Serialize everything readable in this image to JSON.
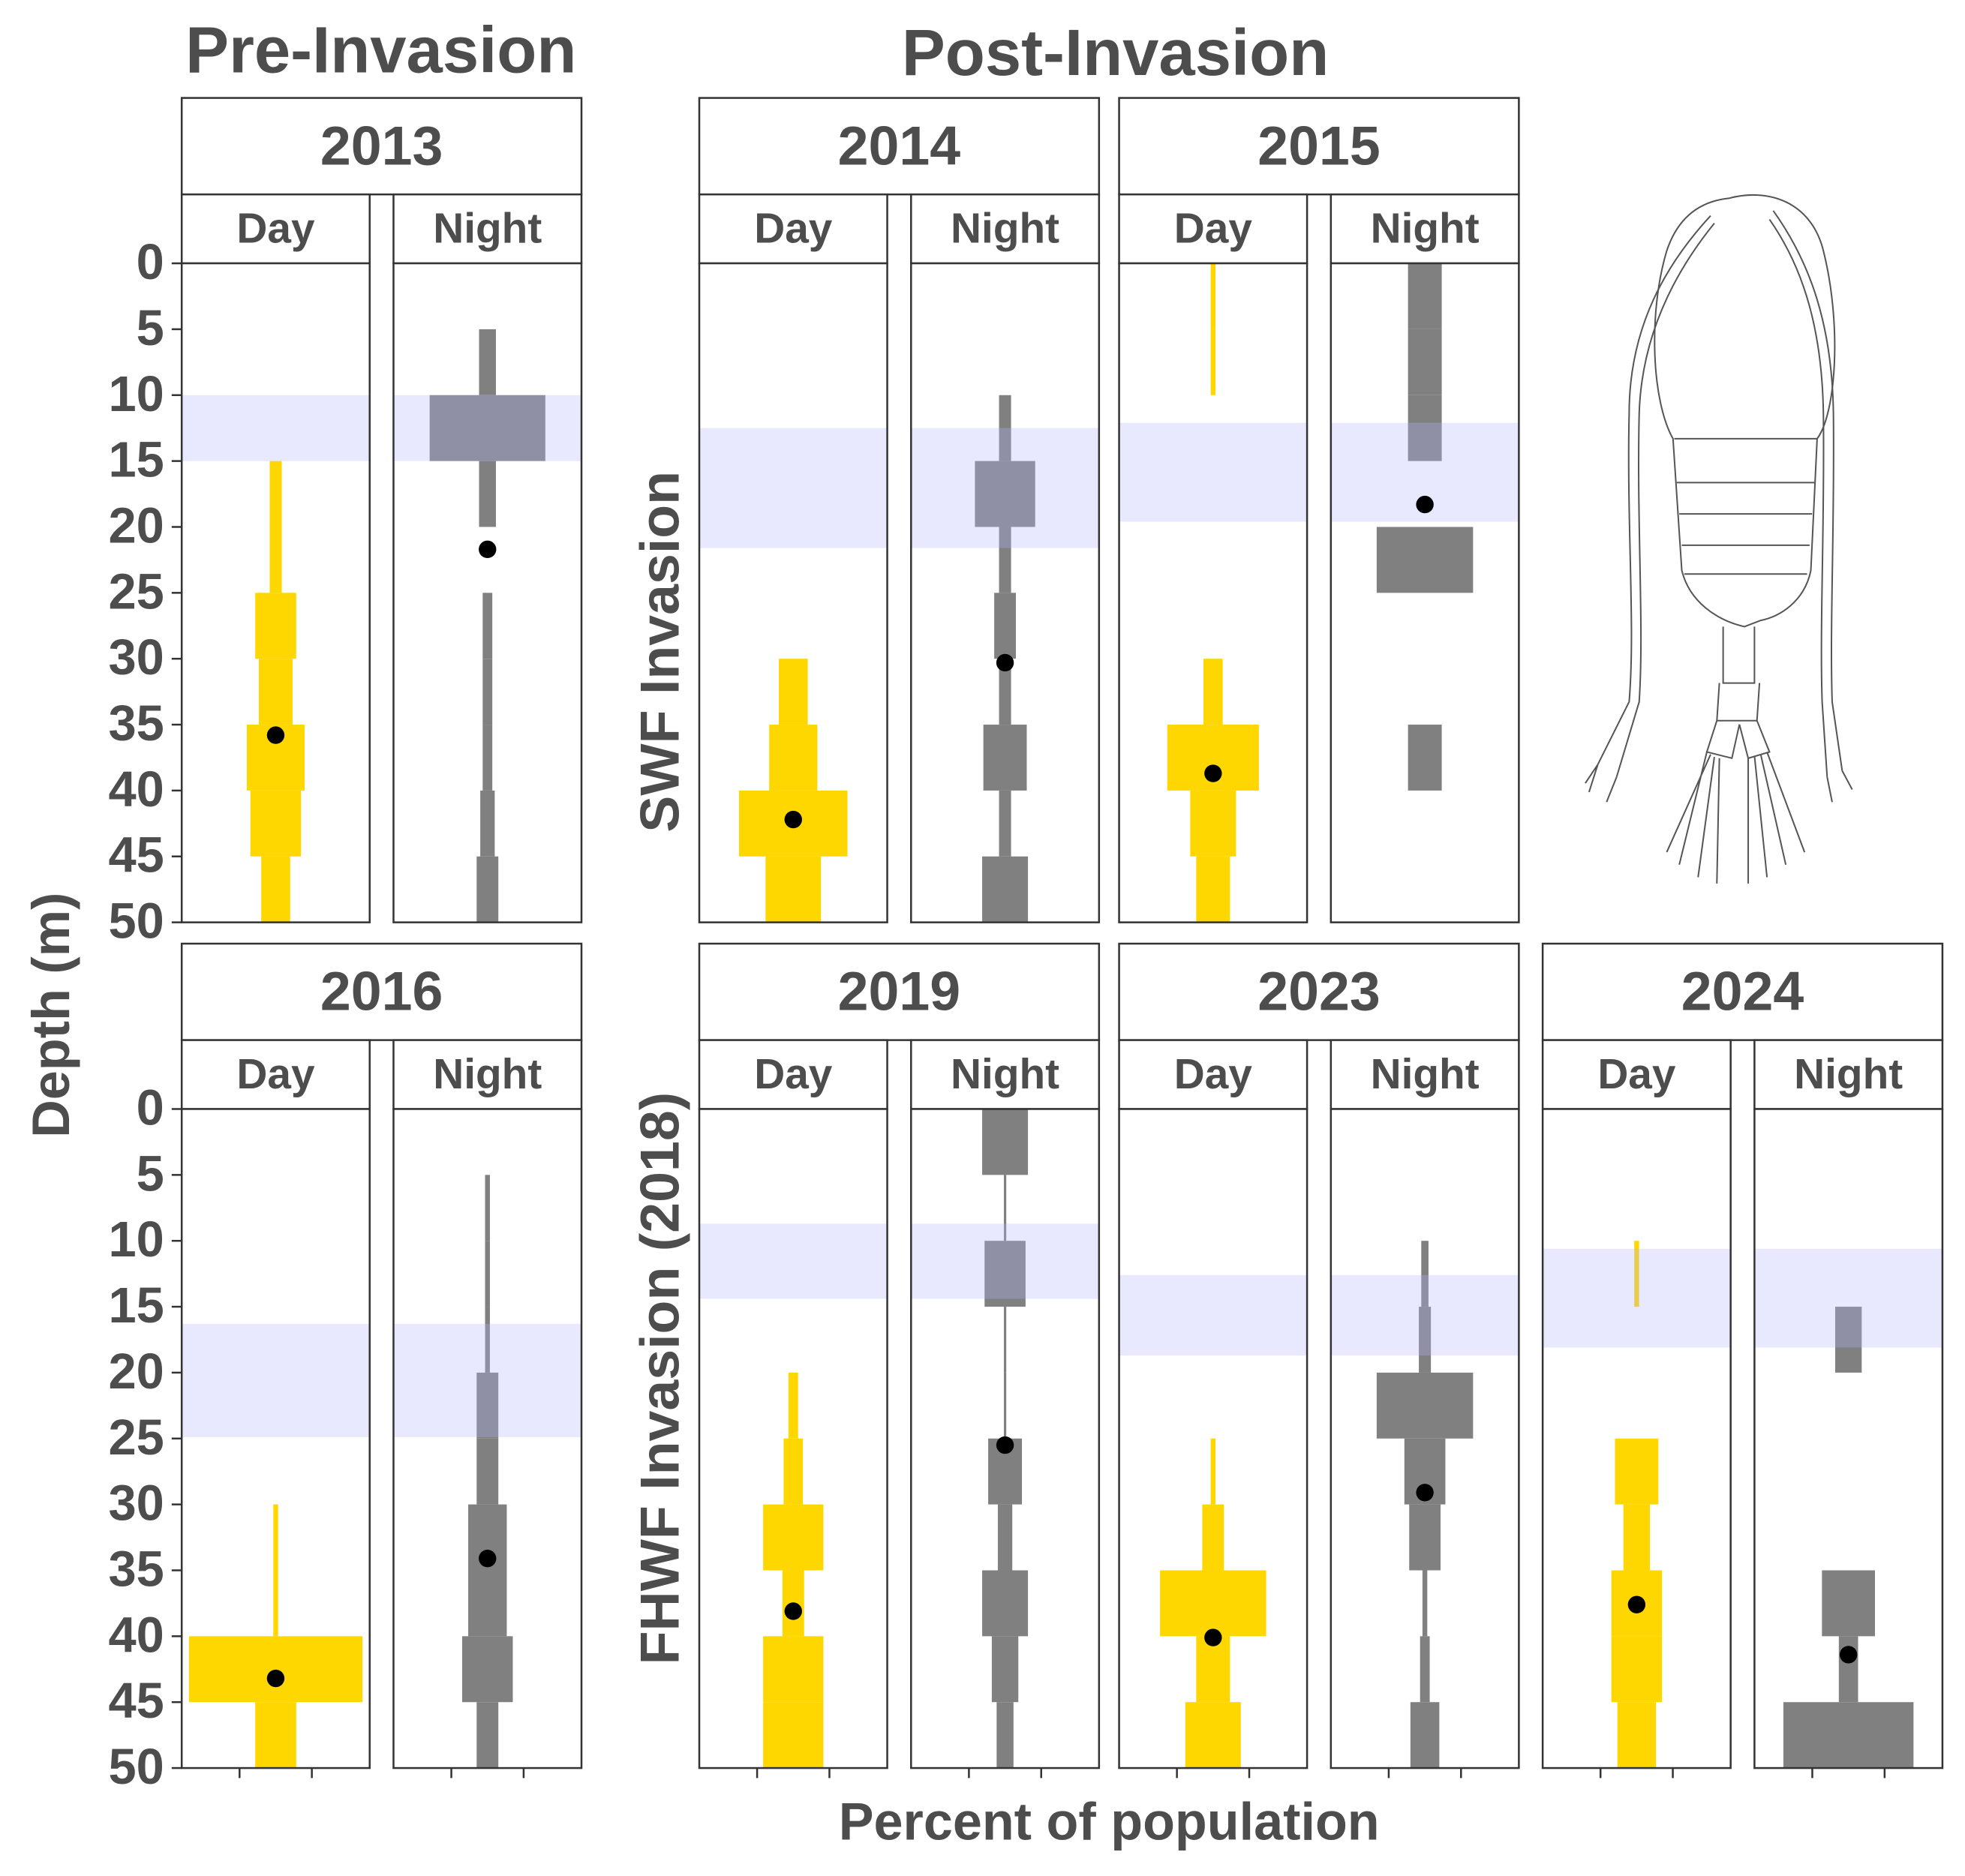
{
  "chart_data": {
    "type": "kite",
    "y_label": "Depth (m)",
    "x_label": "Percent of population",
    "ylim": [
      0,
      50
    ],
    "yticks": [
      0,
      5,
      10,
      15,
      20,
      25,
      30,
      35,
      40,
      45,
      50
    ],
    "xlim": [
      -39,
      39
    ],
    "xticks": [
      -15,
      15
    ],
    "depth_bins": [
      0,
      5,
      10,
      15,
      20,
      25,
      30,
      35,
      40,
      45,
      50
    ],
    "day_color": "#ffd700",
    "night_color": "#808080",
    "band_color": "#b4b4ff",
    "mean_color": "#000000",
    "pre_invasion": {
      "title": "Pre-Invasion",
      "panels": [
        {
          "year": "2013",
          "band": [
            10,
            15
          ],
          "day": {
            "label": "Day",
            "values": [
              0,
              0,
              0,
              5,
              5,
              17,
              14,
              24,
              21,
              12
            ],
            "mean": 35.8
          },
          "night": {
            "label": "Night",
            "values": [
              0,
              7,
              48,
              7,
              0,
              4,
              4,
              4,
              6,
              9
            ],
            "mean": 21.7
          }
        },
        {
          "year": "2016",
          "band": [
            16.3,
            24.9
          ],
          "day": {
            "label": "Day",
            "values": [
              0,
              0,
              0,
              0,
              0,
              0,
              2,
              2,
              72,
              17
            ],
            "mean": 43.2
          },
          "night": {
            "label": "Night",
            "values": [
              0,
              2,
              2,
              2,
              9,
              9,
              16,
              16,
              21,
              9
            ],
            "mean": 34.1
          }
        }
      ]
    },
    "post_invasion": {
      "title": "Post-Invasion",
      "groups": [
        {
          "label": "SWF Invasion",
          "panels": [
            {
              "year": "2014",
              "band": [
                12.5,
                21.6
              ],
              "day": {
                "label": "Day",
                "values": [
                  0,
                  0,
                  0,
                  0,
                  0,
                  0,
                  12,
                  20,
                  45,
                  23
                ],
                "mean": 42.2
              },
              "night": {
                "label": "Night",
                "values": [
                  0,
                  0,
                  5,
                  25,
                  5,
                  9,
                  5,
                  18,
                  5,
                  19
                ],
                "mean": 30.3
              }
            },
            {
              "year": "2015",
              "band": [
                12.1,
                19.6
              ],
              "day": {
                "label": "Day",
                "values": [
                  2,
                  2,
                  0,
                  0,
                  0,
                  0,
                  8,
                  38,
                  19,
                  14
                ],
                "mean": 38.7
              },
              "night": {
                "label": "Night",
                "values": [
                  14,
                  14,
                  14,
                  0,
                  40,
                  0,
                  0,
                  14,
                  0,
                  0
                ],
                "mean": 18.3
              }
            }
          ]
        },
        {
          "label": "FHWF Invasion (2018)",
          "panels": [
            {
              "year": "2019",
              "band": [
                8.7,
                14.4
              ],
              "day": {
                "label": "Day",
                "values": [
                  0,
                  0,
                  0,
                  0,
                  4,
                  8,
                  25,
                  9,
                  25,
                  25
                ],
                "mean": 38.1
              },
              "night": {
                "label": "Night",
                "values": [
                  19,
                  1,
                  17,
                  1,
                  1,
                  14,
                  6,
                  19,
                  11,
                  7
                ],
                "mean": 25.5
              }
            },
            {
              "year": "2023",
              "band": [
                12.6,
                18.7
              ],
              "day": {
                "label": "Day",
                "values": [
                  0,
                  0,
                  0,
                  0,
                  0,
                  2,
                  9,
                  44,
                  14,
                  23
                ],
                "mean": 40.1
              },
              "night": {
                "label": "Night",
                "values": [
                  0,
                  0,
                  3,
                  5,
                  40,
                  17,
                  13,
                  2,
                  4,
                  12
                ],
                "mean": 29.1
              }
            },
            {
              "year": "2024",
              "band": [
                10.6,
                18.1
              ],
              "day": {
                "label": "Day",
                "values": [
                  0,
                  0,
                  2,
                  0,
                  0,
                  18,
                  11,
                  21,
                  21,
                  16
                ],
                "mean": 37.6
              },
              "night": {
                "label": "Night",
                "values": [
                  0,
                  0,
                  0,
                  11,
                  0,
                  0,
                  0,
                  22,
                  8,
                  54
                ],
                "mean": 41.4
              }
            }
          ]
        }
      ]
    }
  }
}
